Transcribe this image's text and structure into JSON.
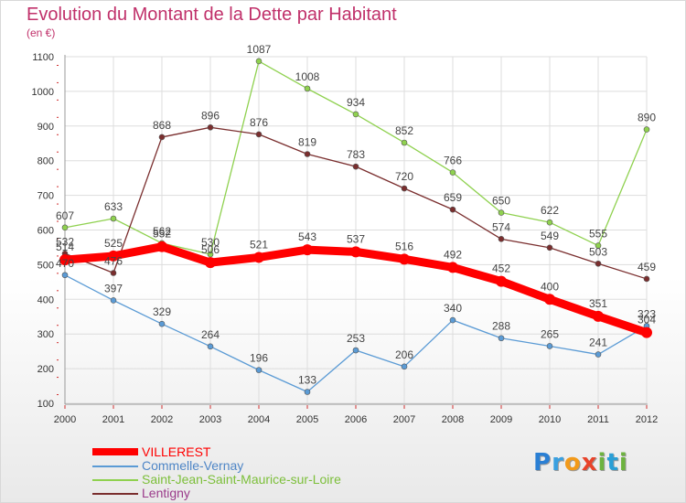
{
  "chart_data": {
    "type": "line",
    "title": "Evolution du Montant de la Dette par Habitant",
    "subtitle": "(en €)",
    "x": [
      "2000",
      "2001",
      "2002",
      "2003",
      "2004",
      "2005",
      "2006",
      "2007",
      "2008",
      "2009",
      "2010",
      "2011",
      "2012"
    ],
    "ylim": [
      100,
      1100
    ],
    "yticks": [
      100,
      200,
      300,
      400,
      500,
      600,
      700,
      800,
      900,
      1000,
      1100
    ],
    "grid": true,
    "legend_position": "bottom-left",
    "series": [
      {
        "name": "Commelle-Vernay",
        "color": "#5b9bd5",
        "width": 1.3,
        "values": [
          470,
          397,
          329,
          264,
          196,
          133,
          253,
          206,
          340,
          288,
          265,
          241,
          323
        ],
        "labels": [
          "470",
          "397",
          "329",
          "264",
          "196",
          "133",
          "253",
          "206",
          "340",
          "288",
          "265",
          "241",
          "323"
        ]
      },
      {
        "name": "Saint-Jean-Saint-Maurice-sur-Loire",
        "color": "#8fd14f",
        "width": 1.3,
        "values": [
          607,
          633,
          562,
          530,
          1087,
          1008,
          934,
          852,
          766,
          650,
          622,
          555,
          890
        ],
        "labels": [
          "607",
          "633",
          "562",
          "530",
          "1087",
          "1008",
          "934",
          "852",
          "766",
          "650",
          "622",
          "555",
          "890"
        ]
      },
      {
        "name": "Lentigny",
        "color": "#7a2e2e",
        "width": 1.3,
        "values": [
          532,
          476,
          868,
          896,
          876,
          819,
          783,
          720,
          659,
          574,
          549,
          503,
          459
        ],
        "labels": [
          "532",
          "476",
          "868",
          "896",
          "876",
          "819",
          "783",
          "720",
          "659",
          "574",
          "549",
          "503",
          "459"
        ]
      },
      {
        "name": "VILLEREST",
        "color": "#ff0000",
        "width": 9,
        "values": [
          514,
          525,
          552,
          506,
          521,
          543,
          537,
          516,
          492,
          452,
          400,
          351,
          304
        ],
        "labels": [
          "514",
          "525",
          "552",
          "506",
          "521",
          "543",
          "537",
          "516",
          "492",
          "452",
          "400",
          "351",
          "304"
        ]
      }
    ],
    "legend_order": [
      "VILLEREST",
      "Commelle-Vernay",
      "Saint-Jean-Saint-Maurice-sur-Loire",
      "Lentigny"
    ]
  },
  "logo": {
    "text": "Proxiti",
    "letters": [
      {
        "ch": "P",
        "color": "#2a7fd4"
      },
      {
        "ch": "r",
        "color": "#3aa0e0"
      },
      {
        "ch": "o",
        "color": "#f29a1a"
      },
      {
        "ch": "x",
        "color": "#e8432a"
      },
      {
        "ch": "i",
        "color": "#6db33f"
      },
      {
        "ch": "t",
        "color": "#2a9fd6"
      },
      {
        "ch": "i",
        "color": "#6db33f"
      }
    ]
  }
}
